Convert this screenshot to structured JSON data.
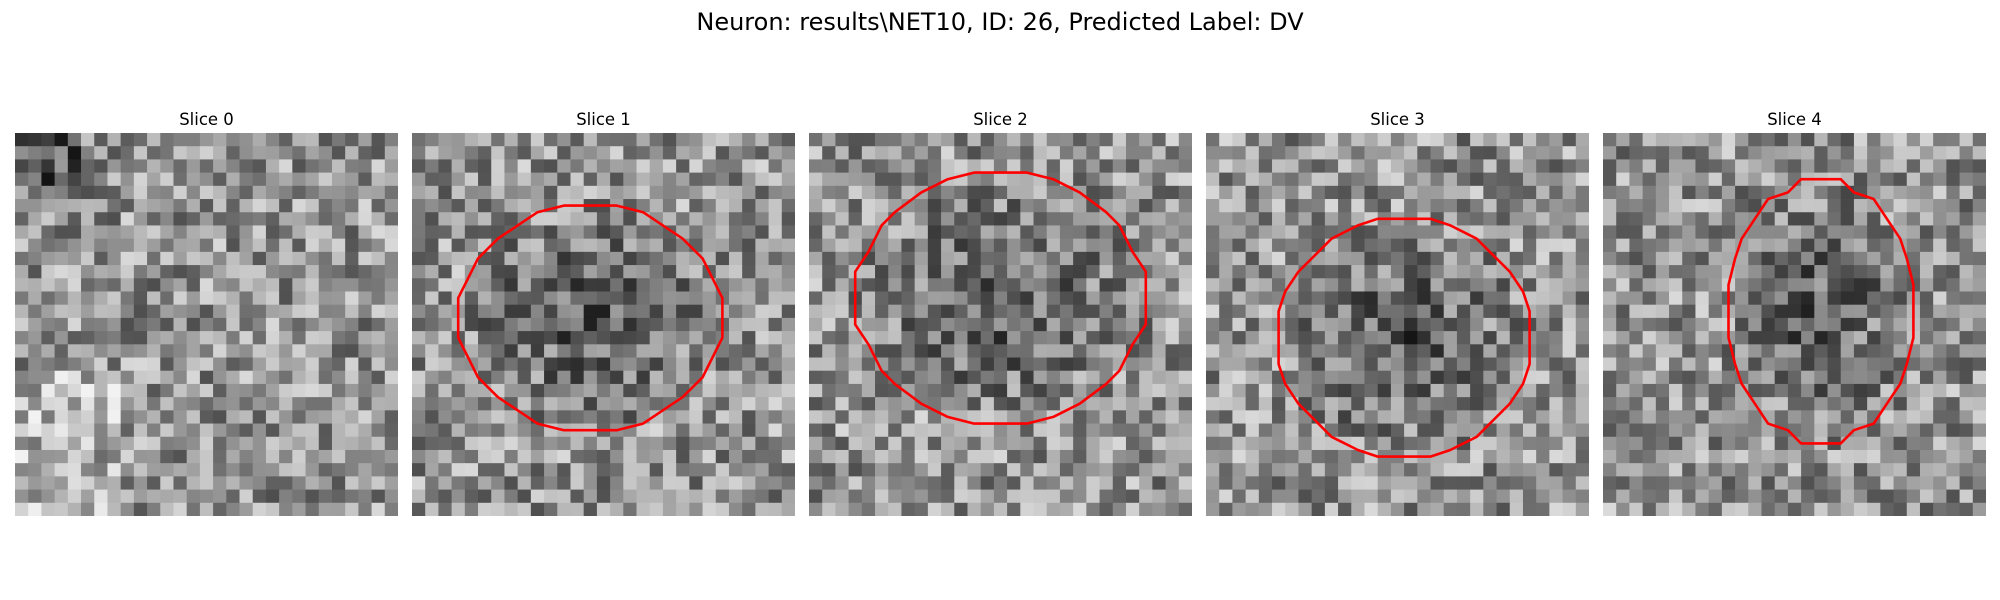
{
  "figure": {
    "title": "Neuron: results\\NET10, ID: 26, Predicted Label: DV"
  },
  "panels": [
    {
      "title": "Slice 0",
      "has_contour": false,
      "seed": 11
    },
    {
      "title": "Slice 1",
      "has_contour": true,
      "seed": 23
    },
    {
      "title": "Slice 2",
      "has_contour": true,
      "seed": 37
    },
    {
      "title": "Slice 3",
      "has_contour": true,
      "seed": 41
    },
    {
      "title": "Slice 4",
      "has_contour": true,
      "seed": 59
    }
  ],
  "colors": {
    "contour": "#ff0000",
    "background": "#ffffff"
  },
  "image": {
    "colormap": "gray",
    "grid_size": 29
  }
}
